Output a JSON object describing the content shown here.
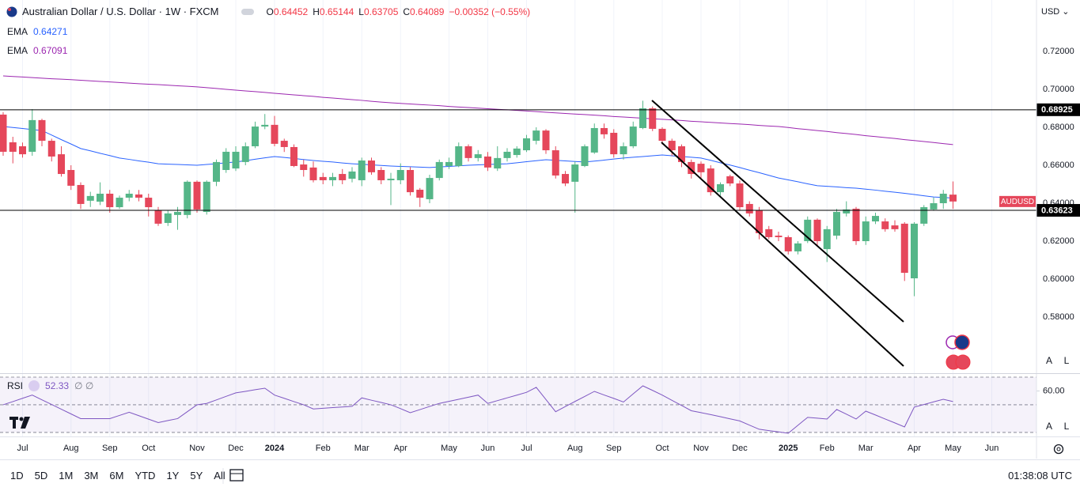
{
  "header": {
    "title": "Australian Dollar / U.S. Dollar · 1W · FXCM",
    "ohlc_labels": [
      "O",
      "H",
      "L",
      "C"
    ],
    "change": "−0.00352 (−0.55%)"
  },
  "toolbar": {
    "ranges": [
      "1D",
      "5D",
      "1M",
      "3M",
      "6M",
      "YTD",
      "1Y",
      "5Y",
      "All"
    ],
    "clock": "01:38:08 UTC",
    "currency": "USD",
    "scale_buttons": [
      "A",
      "L"
    ]
  },
  "chart_data": [
    {
      "type": "candlestick",
      "symbol": "AUDUSD",
      "up_color": "#55b688",
      "down_color": "#e5475b",
      "grid": true,
      "categories": [
        null,
        null,
        "Jul",
        null,
        null,
        null,
        null,
        "Aug",
        null,
        null,
        null,
        "Sep",
        null,
        null,
        null,
        "Oct",
        null,
        null,
        null,
        null,
        "Nov",
        null,
        null,
        null,
        "Dec",
        null,
        null,
        null,
        "2024",
        null,
        null,
        null,
        null,
        "Feb",
        null,
        null,
        null,
        "Mar",
        null,
        null,
        null,
        "Apr",
        null,
        null,
        null,
        null,
        "May",
        null,
        null,
        null,
        "Jun",
        null,
        null,
        null,
        "Jul",
        null,
        null,
        null,
        null,
        "Aug",
        null,
        null,
        null,
        "Sep",
        null,
        null,
        null,
        null,
        "Oct",
        null,
        null,
        null,
        "Nov",
        null,
        null,
        null,
        "Dec",
        null,
        null,
        null,
        null,
        "2025",
        null,
        null,
        null,
        "Feb",
        null,
        null,
        null,
        "Mar",
        null,
        null,
        null,
        null,
        "Apr",
        null,
        null,
        null,
        "May",
        null,
        null,
        null,
        "Jun"
      ],
      "open": [
        0.6867,
        0.6721,
        0.67,
        0.6671,
        0.6838,
        0.6729,
        0.6658,
        0.6575,
        0.6496,
        0.6413,
        0.6408,
        0.645,
        0.6379,
        0.6429,
        0.6446,
        0.6429,
        0.6363,
        0.6296,
        0.6338,
        0.6338,
        0.6513,
        0.6354,
        0.6513,
        0.6575,
        0.6583,
        0.6617,
        0.67,
        0.6804,
        0.6813,
        0.6729,
        0.6696,
        0.6604,
        0.6588,
        0.6538,
        0.6521,
        0.6554,
        0.6529,
        0.6521,
        0.6625,
        0.6575,
        0.6521,
        0.6521,
        0.6575,
        0.6471,
        0.6421,
        0.6533,
        0.6596,
        0.6596,
        0.67,
        0.6638,
        0.6646,
        0.6583,
        0.6638,
        0.6654,
        0.6679,
        0.6729,
        0.6783,
        0.6679,
        0.6554,
        0.6513,
        0.6596,
        0.6667,
        0.6796,
        0.6771,
        0.6658,
        0.67,
        0.6796,
        0.69,
        0.6792,
        0.6729,
        0.67,
        0.6617,
        0.6608,
        0.6583,
        0.6458,
        0.6542,
        0.6504,
        0.6396,
        0.6363,
        0.6263,
        0.6229,
        0.6221,
        0.6146,
        0.62,
        0.6313,
        0.6158,
        0.6229,
        0.6346,
        0.6371,
        0.62,
        0.6304,
        0.6304,
        0.6283,
        0.6292,
        0.6004,
        0.6292,
        0.6367,
        0.64,
        0.64452,
        null,
        null,
        null,
        null
      ],
      "high": [
        0.688,
        0.675,
        0.672,
        0.6896,
        0.6845,
        0.674,
        0.67,
        0.66,
        0.651,
        0.646,
        0.651,
        0.647,
        0.644,
        0.647,
        0.647,
        0.645,
        0.638,
        0.636,
        0.638,
        0.652,
        0.652,
        0.652,
        0.663,
        0.669,
        0.67,
        0.672,
        0.683,
        0.687,
        0.686,
        0.674,
        0.671,
        0.663,
        0.662,
        0.656,
        0.656,
        0.658,
        0.659,
        0.664,
        0.664,
        0.659,
        0.656,
        0.661,
        0.659,
        0.648,
        0.655,
        0.663,
        0.664,
        0.672,
        0.671,
        0.668,
        0.667,
        0.67,
        0.669,
        0.67,
        0.676,
        0.68,
        0.679,
        0.67,
        0.657,
        0.662,
        0.671,
        0.682,
        0.682,
        0.679,
        0.672,
        0.683,
        0.694,
        0.691,
        0.68,
        0.674,
        0.671,
        0.663,
        0.662,
        0.66,
        0.651,
        0.655,
        0.652,
        0.641,
        0.638,
        0.628,
        0.625,
        0.623,
        0.62,
        0.633,
        0.632,
        0.628,
        0.637,
        0.641,
        0.638,
        0.633,
        0.635,
        0.632,
        0.631,
        0.63,
        0.63,
        0.639,
        0.643,
        0.647,
        0.65144,
        null,
        null,
        null,
        null
      ],
      "low": [
        0.665,
        0.661,
        0.664,
        0.665,
        0.67,
        0.662,
        0.654,
        0.647,
        0.637,
        0.638,
        0.639,
        0.635,
        0.637,
        0.641,
        0.641,
        0.633,
        0.628,
        0.628,
        0.626,
        0.632,
        0.635,
        0.634,
        0.649,
        0.656,
        0.657,
        0.66,
        0.669,
        0.679,
        0.67,
        0.667,
        0.659,
        0.654,
        0.651,
        0.65,
        0.649,
        0.65,
        0.651,
        0.649,
        0.655,
        0.65,
        0.639,
        0.65,
        0.644,
        0.638,
        0.64,
        0.652,
        0.658,
        0.659,
        0.662,
        0.662,
        0.657,
        0.657,
        0.662,
        0.664,
        0.667,
        0.671,
        0.666,
        0.653,
        0.649,
        0.635,
        0.659,
        0.666,
        0.674,
        0.664,
        0.663,
        0.669,
        0.679,
        0.678,
        0.671,
        0.665,
        0.659,
        0.653,
        0.653,
        0.644,
        0.644,
        0.649,
        0.636,
        0.633,
        0.621,
        0.621,
        0.62,
        0.613,
        0.613,
        0.619,
        0.617,
        0.609,
        0.621,
        0.633,
        0.618,
        0.618,
        0.629,
        0.625,
        0.625,
        0.599,
        0.591,
        0.628,
        0.636,
        0.637,
        0.63705,
        null,
        null,
        null,
        null
      ],
      "close": [
        0.6671,
        0.6671,
        0.6658,
        0.6838,
        0.6729,
        0.6646,
        0.6554,
        0.6492,
        0.6396,
        0.6438,
        0.645,
        0.6379,
        0.6429,
        0.645,
        0.6429,
        0.6379,
        0.6292,
        0.6346,
        0.6354,
        0.6513,
        0.6367,
        0.6513,
        0.6617,
        0.6671,
        0.6671,
        0.67,
        0.6804,
        0.6813,
        0.6713,
        0.6696,
        0.6596,
        0.6575,
        0.6521,
        0.6521,
        0.6538,
        0.6521,
        0.6567,
        0.6625,
        0.6563,
        0.6521,
        0.6529,
        0.6575,
        0.6458,
        0.6429,
        0.6533,
        0.6617,
        0.6617,
        0.67,
        0.6638,
        0.6658,
        0.6588,
        0.6638,
        0.6671,
        0.6688,
        0.6742,
        0.6783,
        0.6679,
        0.6546,
        0.6504,
        0.6604,
        0.67,
        0.6796,
        0.6763,
        0.6658,
        0.67,
        0.6804,
        0.69,
        0.6792,
        0.6729,
        0.6679,
        0.6617,
        0.6554,
        0.6563,
        0.6458,
        0.65,
        0.6504,
        0.6379,
        0.6346,
        0.6242,
        0.6221,
        0.6221,
        0.6146,
        0.6188,
        0.6313,
        0.62,
        0.6263,
        0.6354,
        0.6367,
        0.62,
        0.6304,
        0.6333,
        0.6263,
        0.6263,
        0.6033,
        0.6292,
        0.6379,
        0.64,
        0.645,
        0.64089,
        null,
        null,
        null,
        null
      ],
      "series": [
        {
          "name": "EMA",
          "color": "#2962ff",
          "values": [
            0.6804,
            0.6799,
            0.6794,
            0.6788,
            0.6783,
            0.6759,
            0.6735,
            0.6712,
            0.6688,
            0.6676,
            0.6663,
            0.6651,
            0.6638,
            0.6631,
            0.6623,
            0.6616,
            0.6608,
            0.6606,
            0.6604,
            0.6602,
            0.66,
            0.6604,
            0.6608,
            0.6613,
            0.6617,
            0.6624,
            0.6632,
            0.6639,
            0.6646,
            0.6641,
            0.6636,
            0.663,
            0.6625,
            0.6621,
            0.6617,
            0.6612,
            0.6608,
            0.6605,
            0.6602,
            0.6599,
            0.6596,
            0.6594,
            0.6592,
            0.659,
            0.6588,
            0.6591,
            0.6594,
            0.6597,
            0.66,
            0.6602,
            0.6604,
            0.6606,
            0.6608,
            0.6613,
            0.6619,
            0.6624,
            0.6629,
            0.6626,
            0.6623,
            0.662,
            0.6617,
            0.6622,
            0.6627,
            0.6633,
            0.6638,
            0.6642,
            0.6646,
            0.665,
            0.6654,
            0.665,
            0.6646,
            0.6642,
            0.6638,
            0.6626,
            0.6613,
            0.6601,
            0.6588,
            0.6574,
            0.6561,
            0.6547,
            0.6533,
            0.6523,
            0.6513,
            0.6502,
            0.6492,
            0.6489,
            0.6486,
            0.6482,
            0.6479,
            0.6474,
            0.6469,
            0.6463,
            0.6458,
            0.6452,
            0.6446,
            0.6439,
            0.6433,
            0.643,
            0.64271,
            null,
            null,
            null,
            null
          ]
        },
        {
          "name": "EMA",
          "color": "#9c27b0",
          "values": [
            0.7071,
            0.7068,
            0.7065,
            0.7062,
            0.7059,
            0.7056,
            0.7054,
            0.7051,
            0.7048,
            0.7045,
            0.7042,
            0.7039,
            0.7036,
            0.7033,
            0.703,
            0.7027,
            0.7025,
            0.7022,
            0.7019,
            0.7016,
            0.7013,
            0.7009,
            0.7005,
            0.7,
            0.6996,
            0.6992,
            0.6988,
            0.6984,
            0.6979,
            0.6975,
            0.6971,
            0.6967,
            0.6963,
            0.6958,
            0.6954,
            0.695,
            0.6946,
            0.6942,
            0.6937,
            0.6933,
            0.6929,
            0.6926,
            0.6923,
            0.692,
            0.6917,
            0.6914,
            0.691,
            0.6907,
            0.6904,
            0.6901,
            0.6898,
            0.6895,
            0.6892,
            0.6889,
            0.6886,
            0.6883,
            0.6879,
            0.6876,
            0.6873,
            0.687,
            0.6867,
            0.6864,
            0.6861,
            0.6857,
            0.6854,
            0.6851,
            0.6848,
            0.6845,
            0.6842,
            0.6839,
            0.6836,
            0.6832,
            0.6829,
            0.6826,
            0.6823,
            0.682,
            0.6817,
            0.6814,
            0.681,
            0.6807,
            0.6804,
            0.6799,
            0.6793,
            0.6788,
            0.6783,
            0.6778,
            0.6772,
            0.6767,
            0.6762,
            0.6756,
            0.6751,
            0.6746,
            0.6741,
            0.6735,
            0.673,
            0.6725,
            0.672,
            0.6714,
            0.67091,
            null,
            null,
            null,
            null
          ]
        }
      ],
      "hlines": [
        0.68925,
        0.63623
      ],
      "ylim": [
        0.5504,
        0.7471
      ],
      "yticks": [
        {
          "value": 0.72,
          "label": "0.72000"
        },
        {
          "value": 0.7,
          "label": "0.70000"
        },
        {
          "value": 0.68,
          "label": "0.68000"
        },
        {
          "value": 0.66,
          "label": "0.66000"
        },
        {
          "value": 0.64,
          "label": "0.64000"
        },
        {
          "value": 0.62,
          "label": "0.62000"
        },
        {
          "value": 0.6,
          "label": "0.60000"
        },
        {
          "value": 0.58,
          "label": "0.58000"
        }
      ]
    },
    {
      "type": "line",
      "legend_extra": "∅ ∅",
      "bands": [
        70,
        50,
        30
      ],
      "series": [
        {
          "name": "RSI",
          "color": "#7e57c2",
          "values": [
            50,
            52.3,
            54.7,
            57,
            53.6,
            50.2,
            46.8,
            43.4,
            40,
            40,
            40,
            40,
            42.3,
            44.6,
            42.1,
            39.6,
            37.1,
            38.6,
            40,
            45,
            50,
            51,
            53.5,
            56.1,
            58.6,
            59.7,
            60.9,
            62,
            57,
            54.7,
            52.3,
            50,
            47,
            47.5,
            48,
            48.4,
            48.9,
            55,
            53.3,
            51.7,
            50,
            47.2,
            44.3,
            46.5,
            48.8,
            51,
            52.5,
            54,
            55.5,
            57,
            51,
            53,
            55,
            57,
            59,
            62.6,
            53.8,
            45,
            48.7,
            52.4,
            56,
            59.7,
            57.1,
            54.6,
            52,
            57.9,
            63.7,
            60.4,
            57,
            53.2,
            49.5,
            45.7,
            44.3,
            42.9,
            41.4,
            39.8,
            38.3,
            35.3,
            32.3,
            31.3,
            30.4,
            29.4,
            35.2,
            40.9,
            40.3,
            39.7,
            46.6,
            43.2,
            39.7,
            45.4,
            42.6,
            39.7,
            36.9,
            34,
            48.3,
            50.2,
            52.1,
            54,
            52.33,
            null,
            null,
            null,
            null
          ]
        }
      ],
      "ylim": [
        27.1,
        71.7
      ],
      "yticks": [
        {
          "value": 60,
          "label": "60.00"
        }
      ]
    }
  ]
}
